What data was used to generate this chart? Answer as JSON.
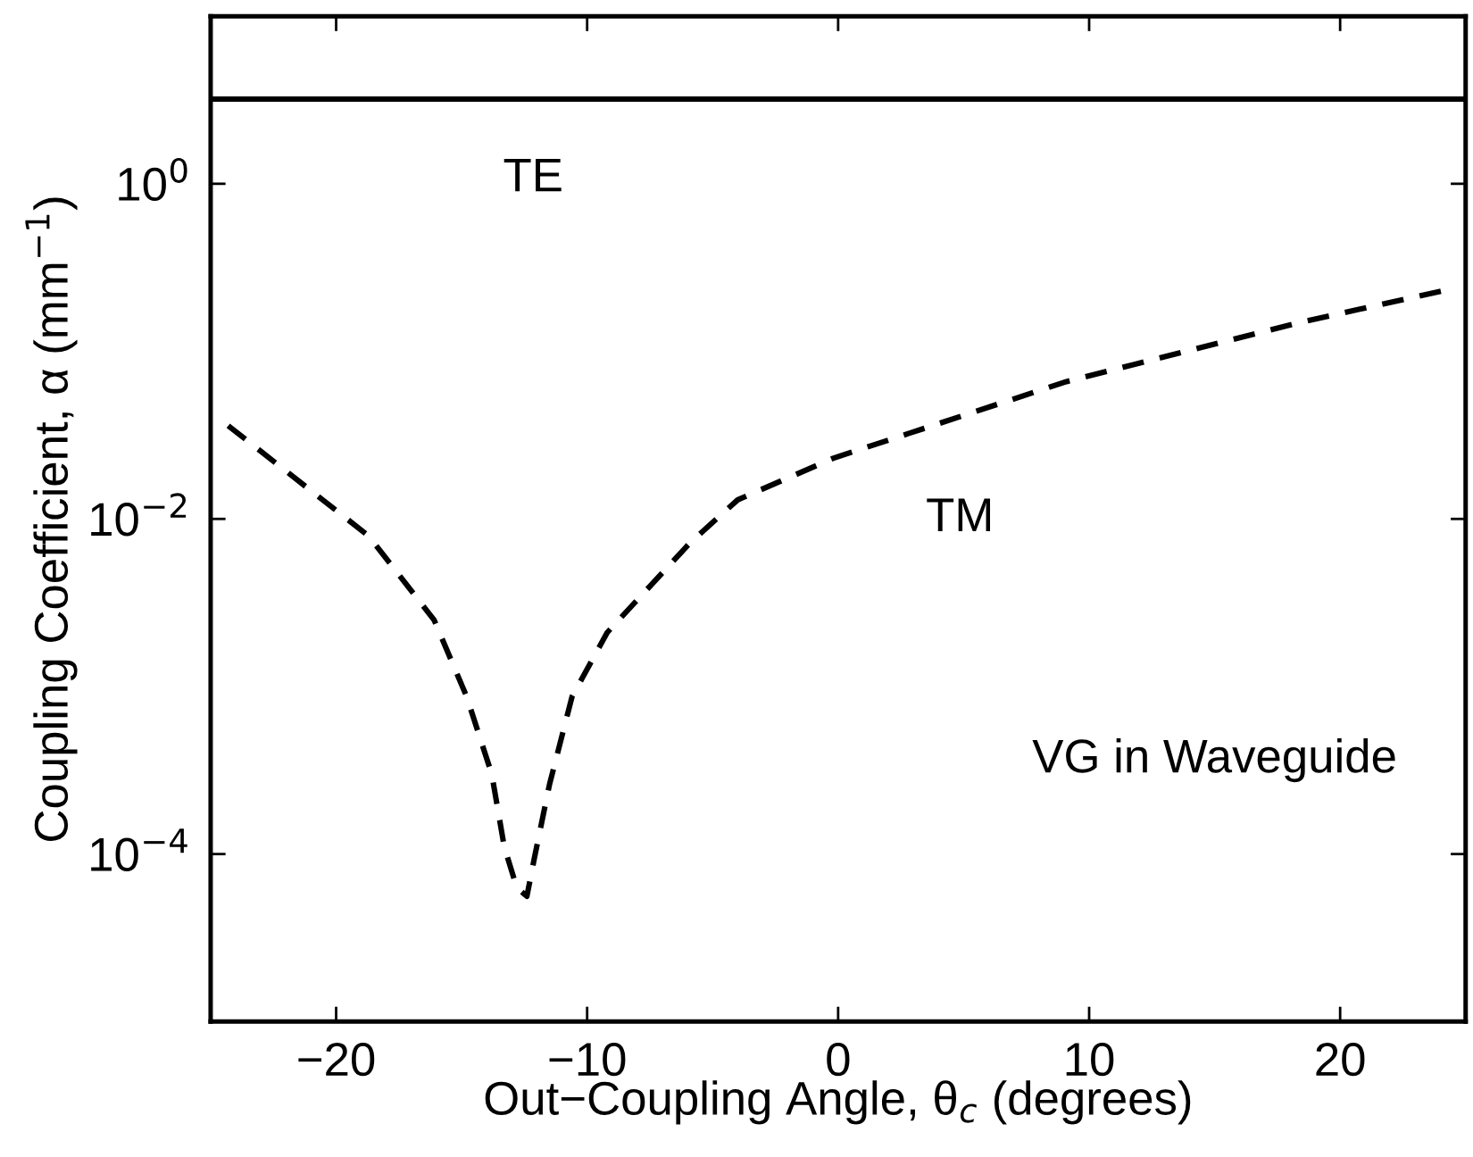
{
  "chart_data": {
    "type": "line",
    "xlabel": "Out−Coupling Angle, θ$_{c}$ (degrees)",
    "ylabel": "Coupling Coefficient, α (mm$^{−1}$)",
    "log": "y",
    "xlim": [
      -25,
      25
    ],
    "xticks": [
      -20,
      -10,
      0,
      10,
      20
    ],
    "ylim": [
      1e-05,
      10
    ],
    "yticks": [
      {
        "value": 0.0001,
        "label": "10$^{−4}$"
      },
      {
        "value": 0.01,
        "label": "10$^{−2}$"
      },
      {
        "value": 1,
        "label": "10$^{0}$"
      }
    ],
    "grid": false,
    "legend": false,
    "series": [
      {
        "color": "#000000",
        "line_style": "solid",
        "x": [
          -25,
          25
        ],
        "values": [
          3.2,
          3.2
        ]
      },
      {
        "color": "#000000",
        "line_style": "dashed",
        "x": [
          -24.3,
          -18.7,
          -16.1,
          -14.8,
          -13.8,
          -13.3,
          -12.8,
          -12.4,
          -12.1,
          -11.5,
          -10.6,
          -9.2,
          -5.9,
          -4.0,
          -0.2,
          9.1,
          18.5,
          24.1
        ],
        "values": [
          0.036,
          0.0079,
          0.0025,
          0.00087,
          0.0003,
          0.00011,
          6.3e-05,
          5.6e-05,
          9.5e-05,
          0.00026,
          0.00087,
          0.0021,
          0.0072,
          0.013,
          0.023,
          0.066,
          0.15,
          0.23
        ]
      }
    ],
    "annotations": [
      "TE",
      "TM",
      "VG in Waveguide"
    ]
  }
}
